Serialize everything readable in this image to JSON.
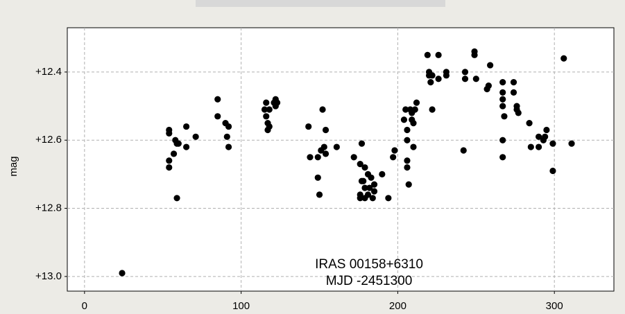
{
  "chart_data": {
    "type": "scatter",
    "y_label": "mag",
    "annotations": [
      "IRAS 00158+6310",
      "MJD -2451300"
    ],
    "x": [
      24,
      54,
      54,
      54,
      54,
      57,
      58,
      59,
      60,
      59,
      65,
      65,
      71,
      85,
      85,
      90,
      91,
      92,
      92,
      115,
      116,
      116,
      117,
      117,
      118,
      118,
      121,
      122,
      122,
      123,
      143,
      144,
      149,
      150,
      149,
      151,
      152,
      153,
      154,
      154,
      161,
      172,
      177,
      176,
      177,
      176,
      176,
      178,
      179,
      179,
      179,
      181,
      181,
      182,
      183,
      184,
      185,
      185,
      190,
      194,
      197,
      198,
      204,
      205,
      206,
      206,
      206,
      206,
      207,
      208,
      209,
      209,
      210,
      210,
      211,
      212,
      219,
      220,
      220,
      221,
      222,
      222,
      226,
      226,
      231,
      231,
      242,
      243,
      243,
      249,
      249,
      250,
      257,
      258,
      259,
      267,
      267,
      267,
      267,
      267,
      267,
      268,
      274,
      274,
      276,
      276,
      277,
      284,
      285,
      290,
      290,
      293,
      294,
      295,
      299,
      299,
      306,
      311
    ],
    "values": [
      12.99,
      12.57,
      12.58,
      12.66,
      12.68,
      12.64,
      12.6,
      12.61,
      12.61,
      12.77,
      12.56,
      12.62,
      12.59,
      12.48,
      12.53,
      12.55,
      12.59,
      12.56,
      12.62,
      12.51,
      12.49,
      12.53,
      12.57,
      12.55,
      12.56,
      12.51,
      12.49,
      12.48,
      12.5,
      12.49,
      12.56,
      12.65,
      12.65,
      12.76,
      12.71,
      12.63,
      12.51,
      12.62,
      12.57,
      12.64,
      12.62,
      12.65,
      12.61,
      12.67,
      12.72,
      12.76,
      12.77,
      12.72,
      12.74,
      12.68,
      12.77,
      12.7,
      12.76,
      12.74,
      12.71,
      12.77,
      12.73,
      12.75,
      12.7,
      12.77,
      12.65,
      12.63,
      12.54,
      12.51,
      12.57,
      12.6,
      12.66,
      12.68,
      12.73,
      12.51,
      12.52,
      12.54,
      12.55,
      12.62,
      12.51,
      12.49,
      12.35,
      12.41,
      12.4,
      12.43,
      12.51,
      12.41,
      12.35,
      12.42,
      12.4,
      12.41,
      12.63,
      12.4,
      12.42,
      12.34,
      12.35,
      12.42,
      12.45,
      12.44,
      12.38,
      12.43,
      12.46,
      12.48,
      12.5,
      12.6,
      12.65,
      12.53,
      12.43,
      12.46,
      12.5,
      12.51,
      12.52,
      12.55,
      12.62,
      12.62,
      12.59,
      12.6,
      12.59,
      12.57,
      12.61,
      12.69,
      12.36,
      12.61
    ],
    "color": "#000000",
    "xlim": [
      -11,
      338
    ],
    "xticks": [
      0,
      100,
      200,
      300
    ],
    "ylim": [
      12.27,
      13.043
    ],
    "y_inverted": true,
    "yticks": [
      {
        "value": 12.4,
        "label": "+12.4"
      },
      {
        "value": 12.6,
        "label": "+12.6"
      },
      {
        "value": 12.8,
        "label": "+12.8"
      },
      {
        "value": 13.0,
        "label": "+13.0"
      }
    ],
    "grid": true
  }
}
